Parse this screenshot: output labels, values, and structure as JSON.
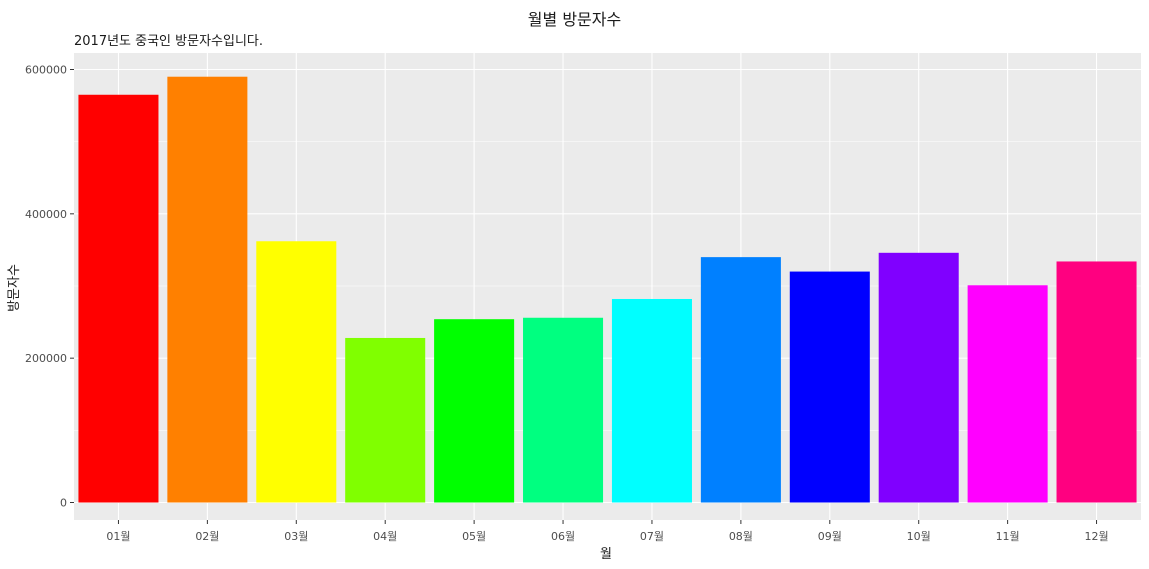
{
  "chart_data": {
    "type": "bar",
    "title": "월별 방문자수",
    "subtitle": "2017년도 중국인 방문자수입니다.",
    "xlabel": "월",
    "ylabel": "방문자수",
    "categories": [
      "01월",
      "02월",
      "03월",
      "04월",
      "05월",
      "06월",
      "07월",
      "08월",
      "09월",
      "10월",
      "11월",
      "12월"
    ],
    "values": [
      565000,
      590000,
      362000,
      228000,
      254000,
      256000,
      282000,
      340000,
      320000,
      346000,
      301000,
      334000
    ],
    "colors": [
      "#FF0000",
      "#FF8000",
      "#FFFF00",
      "#80FF00",
      "#00FF00",
      "#00FF80",
      "#00FFFF",
      "#0080FF",
      "#0000FF",
      "#8000FF",
      "#FF00FF",
      "#FF0080"
    ],
    "yticks": [
      0,
      200000,
      400000,
      600000
    ],
    "ytick_labels": [
      "0",
      "200000",
      "400000",
      "600000"
    ],
    "ylim": [
      0,
      620000
    ],
    "grid": true,
    "panel_background": "#EBEBEB"
  }
}
